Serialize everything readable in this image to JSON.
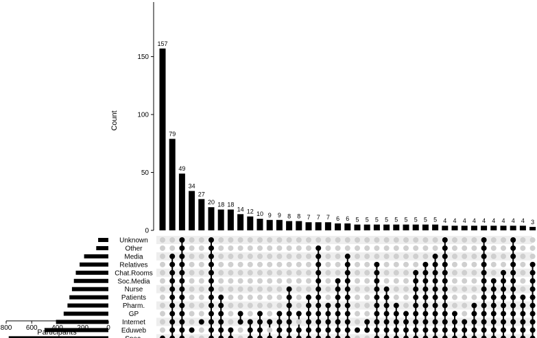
{
  "chart_data": {
    "type": "bar",
    "subtype": "upset",
    "ylabel": "Count",
    "ylim": [
      0,
      190
    ],
    "yticks": [
      0,
      50,
      100,
      150
    ],
    "xlabel_sets": "Participants",
    "set_xlim": [
      0,
      800
    ],
    "set_xticks": [
      800,
      600,
      400,
      200,
      0
    ],
    "sets": [
      {
        "name": "Unknown",
        "size": 80
      },
      {
        "name": "Other",
        "size": 95
      },
      {
        "name": "Media",
        "size": 190
      },
      {
        "name": "Relatives",
        "size": 225
      },
      {
        "name": "Chat.Rooms",
        "size": 255
      },
      {
        "name": "Soc.Media",
        "size": 270
      },
      {
        "name": "Nurse",
        "size": 285
      },
      {
        "name": "Patients",
        "size": 305
      },
      {
        "name": "Pharm.",
        "size": 320
      },
      {
        "name": "GP",
        "size": 350
      },
      {
        "name": "Internet",
        "size": 410
      },
      {
        "name": "Eduweb",
        "size": 500
      },
      {
        "name": "Spec.",
        "size": 780
      }
    ],
    "intersections": [
      {
        "value": 157,
        "label": "157",
        "members": [
          12
        ]
      },
      {
        "value": 79,
        "label": "79",
        "members": [
          2,
          3,
          4,
          5,
          6,
          7,
          8,
          9,
          10,
          11,
          12
        ]
      },
      {
        "value": 49,
        "label": "49",
        "members": [
          0,
          1,
          2,
          3,
          4,
          5,
          6,
          7,
          8,
          9,
          10,
          11,
          12
        ]
      },
      {
        "value": 34,
        "label": "34",
        "members": [
          11
        ]
      },
      {
        "value": 27,
        "label": "27",
        "members": [
          10
        ]
      },
      {
        "value": 20,
        "label": "20",
        "members": [
          0,
          1,
          2,
          3,
          4,
          5,
          6,
          7,
          8,
          9,
          10,
          11,
          12
        ]
      },
      {
        "value": 18,
        "label": "18",
        "members": [
          7,
          8,
          9,
          10,
          11,
          12
        ]
      },
      {
        "value": 18,
        "label": "18",
        "members": [
          11,
          12
        ]
      },
      {
        "value": 14,
        "label": "14",
        "members": [
          9,
          10
        ]
      },
      {
        "value": 12,
        "label": "12",
        "members": [
          10,
          11,
          12
        ]
      },
      {
        "value": 10,
        "label": "10",
        "members": [
          9,
          10,
          11,
          12
        ]
      },
      {
        "value": 9,
        "label": "9",
        "members": [
          10,
          12
        ]
      },
      {
        "value": 9,
        "label": "9",
        "members": [
          9,
          10,
          11,
          12
        ]
      },
      {
        "value": 8,
        "label": "8",
        "members": [
          6,
          7,
          8,
          9,
          10,
          11,
          12
        ]
      },
      {
        "value": 8,
        "label": "8",
        "members": [
          9,
          11,
          12
        ]
      },
      {
        "value": 7,
        "label": "7",
        "members": [
          7,
          8,
          9,
          10,
          11,
          12
        ]
      },
      {
        "value": 7,
        "label": "7",
        "members": [
          1,
          2,
          3,
          4,
          5,
          6,
          7,
          8,
          9,
          10,
          11,
          12
        ]
      },
      {
        "value": 7,
        "label": "7",
        "members": [
          8,
          9,
          10,
          11,
          12
        ]
      },
      {
        "value": 6,
        "label": "6",
        "members": [
          5,
          6,
          7,
          8,
          9,
          10,
          11,
          12
        ]
      },
      {
        "value": 6,
        "label": "6",
        "members": [
          2,
          3,
          4,
          5,
          6,
          7,
          8,
          9,
          10,
          11,
          12
        ]
      },
      {
        "value": 5,
        "label": "5",
        "members": [
          11
        ]
      },
      {
        "value": 5,
        "label": "5",
        "members": [
          10,
          11
        ]
      },
      {
        "value": 5,
        "label": "5",
        "members": [
          3,
          4,
          5,
          6,
          7,
          8,
          9,
          10,
          11,
          12
        ]
      },
      {
        "value": 5,
        "label": "5",
        "members": [
          6,
          7,
          8,
          9,
          10,
          11,
          12
        ]
      },
      {
        "value": 5,
        "label": "5",
        "members": [
          8,
          9,
          10,
          11,
          12
        ]
      },
      {
        "value": 5,
        "label": "5",
        "members": [
          9,
          10,
          11,
          12
        ]
      },
      {
        "value": 5,
        "label": "5",
        "members": [
          4,
          5,
          6,
          7,
          8,
          9,
          10,
          11,
          12
        ]
      },
      {
        "value": 5,
        "label": "5",
        "members": [
          3,
          4,
          5,
          6,
          7,
          8,
          9,
          10,
          11,
          12
        ]
      },
      {
        "value": 5,
        "label": "5",
        "members": [
          2,
          3,
          4,
          5,
          6,
          7,
          8,
          9,
          10,
          11,
          12
        ]
      },
      {
        "value": 4,
        "label": "4",
        "members": [
          0,
          1,
          2,
          3,
          4,
          5,
          6,
          7,
          8,
          9,
          10,
          11,
          12
        ]
      },
      {
        "value": 4,
        "label": "4",
        "members": [
          9,
          10,
          11,
          12
        ]
      },
      {
        "value": 4,
        "label": "4",
        "members": [
          10,
          11,
          12
        ]
      },
      {
        "value": 4,
        "label": "4",
        "members": [
          8,
          9,
          10,
          11,
          12
        ]
      },
      {
        "value": 4,
        "label": "4",
        "members": [
          0,
          1,
          2,
          3,
          4,
          5,
          6,
          7,
          8,
          9,
          10,
          11,
          12
        ]
      },
      {
        "value": 4,
        "label": "4",
        "members": [
          5,
          6,
          7,
          8,
          9,
          10,
          11,
          12
        ]
      },
      {
        "value": 4,
        "label": "4",
        "members": [
          4,
          5,
          6,
          7,
          8,
          9,
          10,
          11,
          12
        ]
      },
      {
        "value": 4,
        "label": "4",
        "members": [
          0,
          1,
          2,
          3,
          4,
          5,
          6,
          7,
          8,
          9,
          10,
          11,
          12
        ]
      },
      {
        "value": 4,
        "label": "4",
        "members": [
          7,
          8,
          9,
          10,
          11,
          12
        ]
      },
      {
        "value": 3,
        "label": "3",
        "members": [
          3,
          4,
          5,
          6,
          7,
          8,
          9,
          10,
          11,
          12
        ]
      }
    ],
    "grid": false,
    "colors": {
      "bar": "#000000",
      "dot_on": "#000000",
      "dot_off": "#cfcfcf",
      "stripe": "#eeeeee"
    }
  }
}
